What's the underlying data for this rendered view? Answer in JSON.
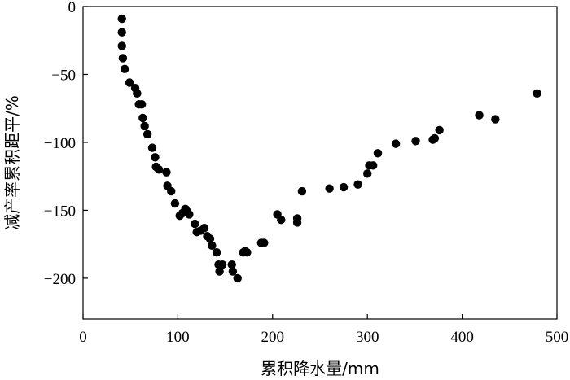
{
  "chart_data": {
    "type": "scatter",
    "xlabel": "累积降水量/mm",
    "ylabel": "减产率累积距平/%",
    "xlim": [
      0,
      500
    ],
    "ylim": [
      -230,
      0
    ],
    "x_ticks": [
      0,
      100,
      200,
      300,
      400,
      500
    ],
    "y_ticks": [
      0,
      -50,
      -100,
      -150,
      -200
    ],
    "x_tick_labels": [
      "0",
      "100",
      "200",
      "300",
      "400",
      "500"
    ],
    "y_tick_labels": [
      "0",
      "−50",
      "−100",
      "−150",
      "−200"
    ],
    "grid": false,
    "marker_color": "#000000",
    "series": [
      {
        "points": [
          [
            41,
            -9
          ],
          [
            41,
            -19
          ],
          [
            41,
            -29
          ],
          [
            42,
            -38
          ],
          [
            44,
            -46
          ],
          [
            49,
            -56
          ],
          [
            55,
            -60
          ],
          [
            57,
            -64
          ],
          [
            59,
            -72
          ],
          [
            62,
            -72
          ],
          [
            63,
            -82
          ],
          [
            65,
            -88
          ],
          [
            68,
            -94
          ],
          [
            73,
            -104
          ],
          [
            76,
            -111
          ],
          [
            77,
            -118
          ],
          [
            80,
            -120
          ],
          [
            88,
            -122
          ],
          [
            89,
            -132
          ],
          [
            93,
            -136
          ],
          [
            97,
            -145
          ],
          [
            102,
            -154
          ],
          [
            105,
            -152
          ],
          [
            108,
            -149
          ],
          [
            110,
            -151
          ],
          [
            112,
            -153
          ],
          [
            118,
            -160
          ],
          [
            120,
            -166
          ],
          [
            124,
            -165
          ],
          [
            128,
            -163
          ],
          [
            131,
            -169
          ],
          [
            134,
            -171
          ],
          [
            136,
            -176
          ],
          [
            141,
            -181
          ],
          [
            143,
            -190
          ],
          [
            144,
            -195
          ],
          [
            147,
            -190
          ],
          [
            157,
            -190
          ],
          [
            158,
            -195
          ],
          [
            163,
            -200
          ],
          [
            169,
            -181
          ],
          [
            171,
            -180
          ],
          [
            173,
            -181
          ],
          [
            188,
            -174
          ],
          [
            191,
            -174
          ],
          [
            205,
            -153
          ],
          [
            209,
            -157
          ],
          [
            226,
            -159
          ],
          [
            226,
            -156
          ],
          [
            231,
            -136
          ],
          [
            260,
            -134
          ],
          [
            275,
            -133
          ],
          [
            290,
            -131
          ],
          [
            300,
            -123
          ],
          [
            302,
            -117
          ],
          [
            306,
            -117
          ],
          [
            311,
            -108
          ],
          [
            330,
            -101
          ],
          [
            351,
            -99
          ],
          [
            369,
            -98
          ],
          [
            371,
            -97
          ],
          [
            376,
            -91
          ],
          [
            418,
            -80
          ],
          [
            435,
            -83
          ],
          [
            479,
            -64
          ]
        ]
      }
    ]
  }
}
